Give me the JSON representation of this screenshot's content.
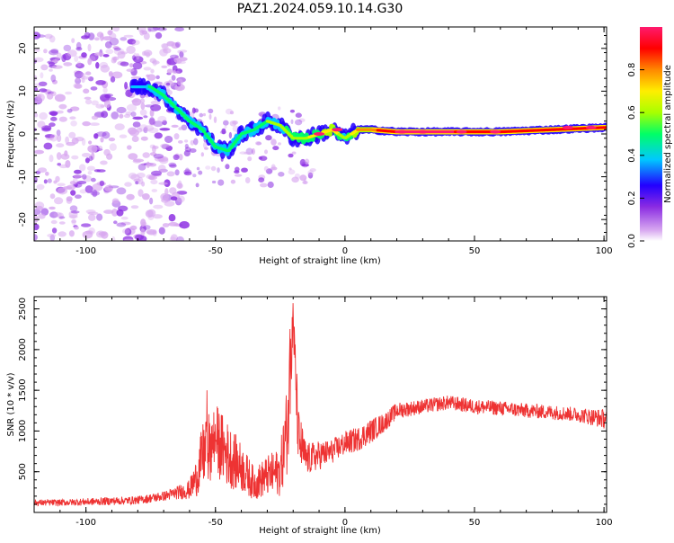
{
  "title": "PAZ1.2024.059.10.14.G30",
  "colors": {
    "line": "#ee3333",
    "axis": "#000000"
  },
  "colormap": [
    "#d8a8f0",
    "#8a2be2",
    "#2200ff",
    "#00c8ff",
    "#00ff66",
    "#a8ff00",
    "#ffee00",
    "#ff8800",
    "#ff0000",
    "#ff1a6e"
  ],
  "chart_data": [
    {
      "type": "heatmap",
      "xlabel": "Height of straight line (km)",
      "ylabel": "Frequency (Hz)",
      "xlim": [
        -120,
        101
      ],
      "ylim": [
        -25,
        25
      ],
      "xticks": [
        -100,
        -50,
        0,
        50,
        100
      ],
      "yticks": [
        -20,
        -10,
        0,
        10,
        20
      ],
      "xtick_labels": [
        "-100",
        "-50",
        "0",
        "50",
        "100"
      ],
      "ytick_labels": [
        "-20",
        "-10",
        "0",
        "10",
        "20"
      ],
      "colorbar": {
        "label": "Normalized spectral amplitude",
        "range": [
          0,
          1
        ],
        "ticks": [
          0.0,
          0.2,
          0.4,
          0.6,
          0.8
        ],
        "tick_labels": [
          "0.0",
          "0.2",
          "0.4",
          "0.6",
          "0.8"
        ]
      },
      "ridge": {
        "x": [
          -80,
          -75,
          -70,
          -65,
          -60,
          -55,
          -50,
          -45,
          -40,
          -35,
          -30,
          -25,
          -20,
          -15,
          -10,
          -5,
          0,
          5,
          10,
          20,
          40,
          60,
          80,
          100
        ],
        "f": [
          11,
          11,
          9,
          6,
          3,
          1,
          -3,
          -4,
          0,
          1,
          3,
          2,
          -1,
          -1,
          0,
          1,
          -1,
          1,
          1,
          0.5,
          0.5,
          0.5,
          1,
          1.5
        ],
        "amp": [
          0.3,
          0.4,
          0.4,
          0.4,
          0.45,
          0.4,
          0.45,
          0.45,
          0.5,
          0.4,
          0.5,
          0.5,
          0.55,
          0.6,
          0.65,
          0.7,
          0.5,
          0.75,
          0.8,
          0.95,
          0.95,
          0.9,
          0.85,
          0.9
        ]
      }
    },
    {
      "type": "line",
      "xlabel": "Height of straight line (km)",
      "ylabel": "SNR (10 * v/v)",
      "xlim": [
        -120,
        101
      ],
      "ylim": [
        0,
        2650
      ],
      "xticks": [
        -100,
        -50,
        0,
        50,
        100
      ],
      "yticks": [
        500,
        1000,
        1500,
        2000,
        2500
      ],
      "xtick_labels": [
        "-100",
        "-50",
        "0",
        "50",
        "100"
      ],
      "ytick_labels": [
        "500",
        "1000",
        "1500",
        "2000",
        "2500"
      ],
      "series": [
        {
          "x": [
            -120,
            -110,
            -100,
            -90,
            -80,
            -70,
            -65,
            -60,
            -57,
            -55,
            -50,
            -45,
            -40,
            -35,
            -30,
            -25,
            -22,
            -20,
            -18,
            -15,
            -10,
            -5,
            0,
            5,
            10,
            15,
            20,
            30,
            40,
            50,
            60,
            70,
            80,
            90,
            100
          ],
          "y": [
            120,
            120,
            130,
            140,
            150,
            200,
            240,
            280,
            450,
            700,
            900,
            700,
            550,
            350,
            450,
            500,
            1100,
            2400,
            900,
            650,
            700,
            750,
            850,
            900,
            1000,
            1100,
            1250,
            1300,
            1350,
            1300,
            1280,
            1250,
            1230,
            1200,
            1150
          ],
          "jitter": [
            40,
            40,
            45,
            50,
            50,
            60,
            80,
            120,
            250,
            400,
            450,
            400,
            300,
            200,
            250,
            300,
            600,
            300,
            400,
            200,
            180,
            150,
            150,
            150,
            150,
            120,
            100,
            90,
            90,
            90,
            90,
            90,
            90,
            90,
            120
          ]
        }
      ]
    }
  ]
}
